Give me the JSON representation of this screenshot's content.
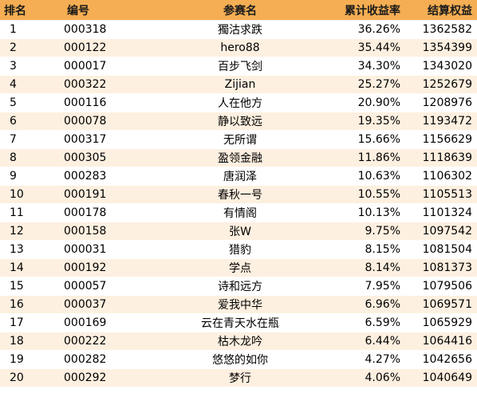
{
  "table": {
    "headers": {
      "rank": "排名",
      "id": "编号",
      "name": "参赛名",
      "return": "累计收益率",
      "equity": "结算权益"
    },
    "rows": [
      {
        "rank": "1",
        "id": "000318",
        "name": "獨沽求跌",
        "return": "36.26%",
        "equity": "1362582"
      },
      {
        "rank": "2",
        "id": "000122",
        "name": "hero88",
        "return": "35.44%",
        "equity": "1354399"
      },
      {
        "rank": "3",
        "id": "000017",
        "name": "百步飞剑",
        "return": "34.30%",
        "equity": "1343020"
      },
      {
        "rank": "4",
        "id": "000322",
        "name": "Zijian",
        "return": "25.27%",
        "equity": "1252679"
      },
      {
        "rank": "5",
        "id": "000116",
        "name": "人在他方",
        "return": "20.90%",
        "equity": "1208976"
      },
      {
        "rank": "6",
        "id": "000078",
        "name": "静以致远",
        "return": "19.35%",
        "equity": "1193472"
      },
      {
        "rank": "7",
        "id": "000317",
        "name": "无所谓",
        "return": "15.66%",
        "equity": "1156629"
      },
      {
        "rank": "8",
        "id": "000305",
        "name": "盈领金融",
        "return": "11.86%",
        "equity": "1118639"
      },
      {
        "rank": "9",
        "id": "000283",
        "name": "唐润泽",
        "return": "10.63%",
        "equity": "1106302"
      },
      {
        "rank": "10",
        "id": "000191",
        "name": "春秋一号",
        "return": "10.55%",
        "equity": "1105513"
      },
      {
        "rank": "11",
        "id": "000178",
        "name": "有情阁",
        "return": "10.13%",
        "equity": "1101324"
      },
      {
        "rank": "12",
        "id": "000158",
        "name": "张W",
        "return": "9.75%",
        "equity": "1097542"
      },
      {
        "rank": "13",
        "id": "000031",
        "name": "猎豹",
        "return": "8.15%",
        "equity": "1081504"
      },
      {
        "rank": "14",
        "id": "000192",
        "name": "学点",
        "return": "8.14%",
        "equity": "1081373"
      },
      {
        "rank": "15",
        "id": "000057",
        "name": "诗和远方",
        "return": "7.95%",
        "equity": "1079506"
      },
      {
        "rank": "16",
        "id": "000037",
        "name": "爱我中华",
        "return": "6.96%",
        "equity": "1069571"
      },
      {
        "rank": "17",
        "id": "000169",
        "name": "云在青天水在瓶",
        "return": "6.59%",
        "equity": "1065929"
      },
      {
        "rank": "18",
        "id": "000222",
        "name": "枯木龙吟",
        "return": "6.44%",
        "equity": "1064416"
      },
      {
        "rank": "19",
        "id": "000282",
        "name": "悠悠的如你",
        "return": "4.27%",
        "equity": "1042656"
      },
      {
        "rank": "20",
        "id": "000292",
        "name": "梦行",
        "return": "4.06%",
        "equity": "1040649"
      }
    ]
  },
  "colors": {
    "header_bg": "#f5ae53",
    "stripe_bg": "#fef0e0"
  }
}
